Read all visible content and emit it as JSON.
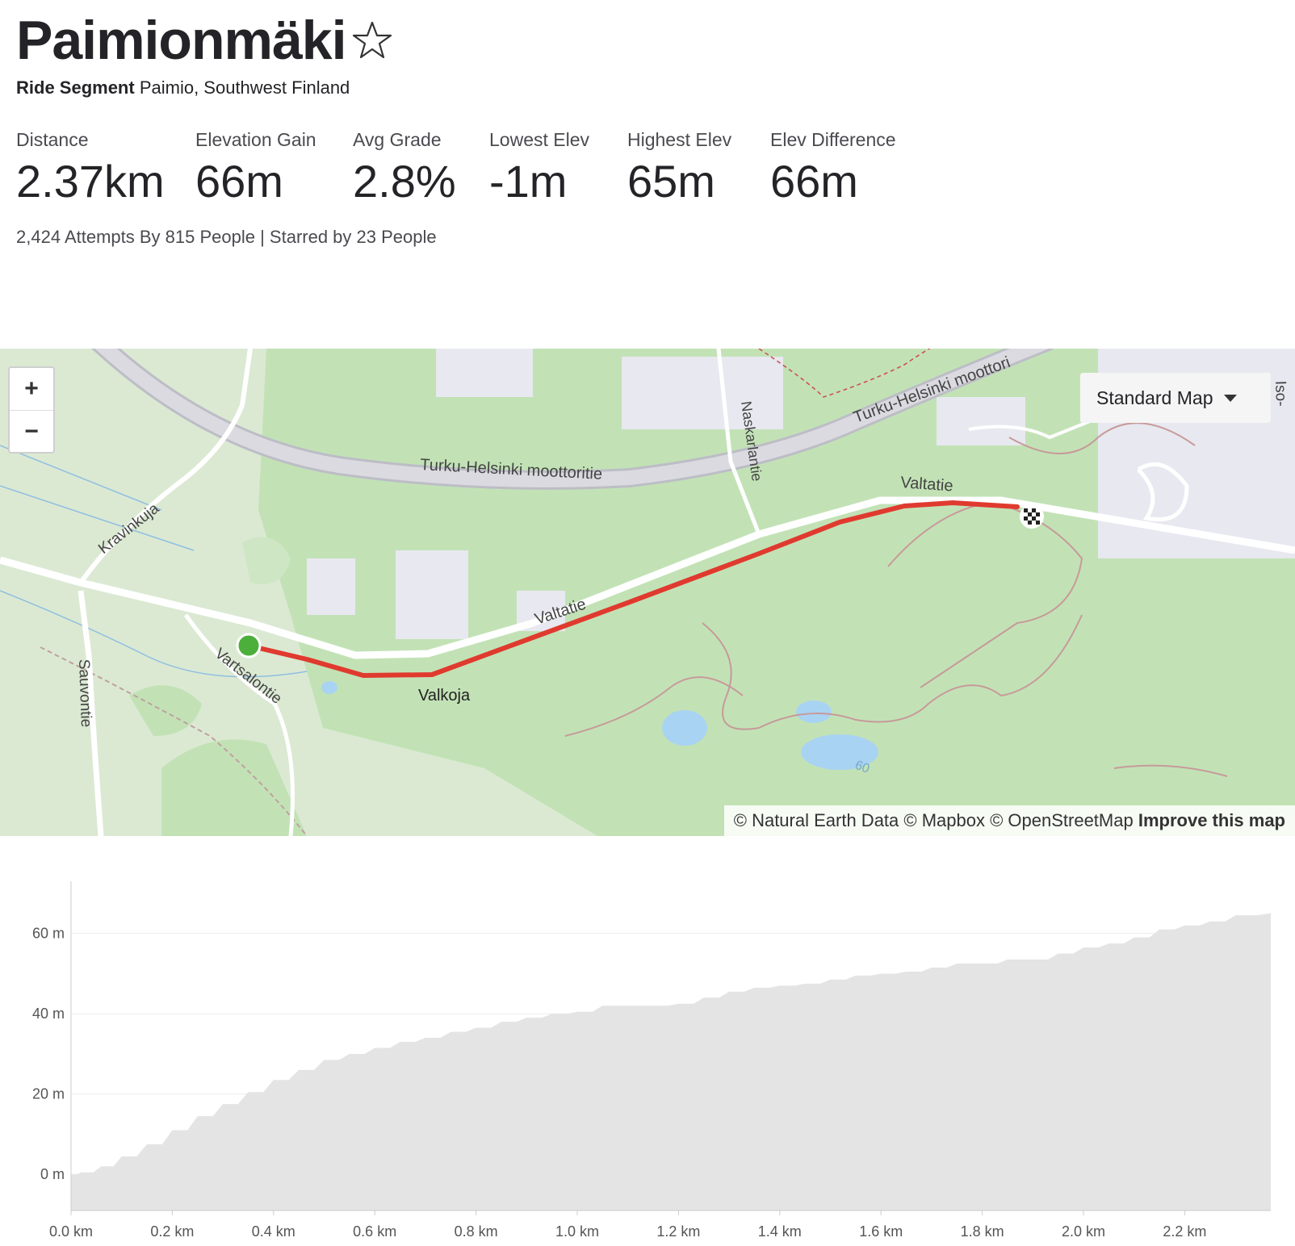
{
  "segment": {
    "title": "Paimionmäki",
    "type_label": "Ride Segment",
    "location": "Paimio, Southwest Finland",
    "attempts_text": "2,424 Attempts By 815 People | Starred by 23 People"
  },
  "stats": [
    {
      "label": "Distance",
      "value": "2.37km"
    },
    {
      "label": "Elevation Gain",
      "value": "66m"
    },
    {
      "label": "Avg Grade",
      "value": "2.8%"
    },
    {
      "label": "Lowest Elev",
      "value": "-1m"
    },
    {
      "label": "Highest Elev",
      "value": "65m"
    },
    {
      "label": "Elev Difference",
      "value": "66m"
    }
  ],
  "map": {
    "zoom_in": "+",
    "zoom_out": "−",
    "map_type": "Standard Map",
    "attribution": "© Natural Earth Data © Mapbox © OpenStreetMap",
    "improve": "Improve this map",
    "labels": {
      "motorway_1": "Turku-Helsinki moottoritie",
      "motorway_2": "Turku-Helsinki moottori",
      "kravinkuja": "Kravinkuja",
      "naskarlantie": "Naskarlantie",
      "valtatie_1": "Valtatie",
      "valtatie_2": "Valtatie",
      "vartsalontie": "Vartsalontie",
      "sauvontie": "Sauvontie",
      "valkoja": "Valkoja",
      "iso": "Iso-",
      "sixty": "60"
    },
    "colors": {
      "route": "#e03a2f",
      "start": "#4caf3c",
      "land": "#dbe9d3",
      "forest": "#c2e2b6",
      "water": "#a9d3f2"
    }
  },
  "chart_data": {
    "type": "area",
    "title": "",
    "xlabel": "",
    "ylabel": "",
    "x_unit": "km",
    "y_unit": "m",
    "xlim": [
      0,
      2.37
    ],
    "ylim": [
      -9,
      73
    ],
    "x_ticks": [
      "0.0 km",
      "0.2 km",
      "0.4 km",
      "0.6 km",
      "0.8 km",
      "1.0 km",
      "1.2 km",
      "1.4 km",
      "1.6 km",
      "1.8 km",
      "2.0 km",
      "2.2 km"
    ],
    "y_ticks": [
      "0 m",
      "20 m",
      "40 m",
      "60 m"
    ],
    "grid": true,
    "x": [
      0.0,
      0.02,
      0.06,
      0.1,
      0.15,
      0.2,
      0.25,
      0.3,
      0.35,
      0.4,
      0.45,
      0.5,
      0.55,
      0.6,
      0.65,
      0.7,
      0.75,
      0.8,
      0.85,
      0.9,
      0.95,
      1.0,
      1.05,
      1.1,
      1.15,
      1.2,
      1.25,
      1.3,
      1.35,
      1.4,
      1.45,
      1.5,
      1.55,
      1.6,
      1.65,
      1.7,
      1.75,
      1.8,
      1.85,
      1.9,
      1.95,
      2.0,
      2.05,
      2.1,
      2.15,
      2.2,
      2.25,
      2.3,
      2.37
    ],
    "values": [
      0,
      0.5,
      2,
      4.5,
      7.5,
      11,
      14.5,
      17.5,
      20.5,
      23.5,
      26,
      28.5,
      30,
      31.5,
      33,
      34,
      35.5,
      36.5,
      38,
      39,
      40,
      40.5,
      42,
      42,
      42,
      42.5,
      44,
      45.5,
      46.5,
      47,
      47.5,
      48.5,
      49.5,
      50,
      50.5,
      51.5,
      52.5,
      52.5,
      53.5,
      53.5,
      55,
      56.5,
      57.5,
      59,
      61,
      62,
      63,
      64.5,
      65
    ]
  }
}
